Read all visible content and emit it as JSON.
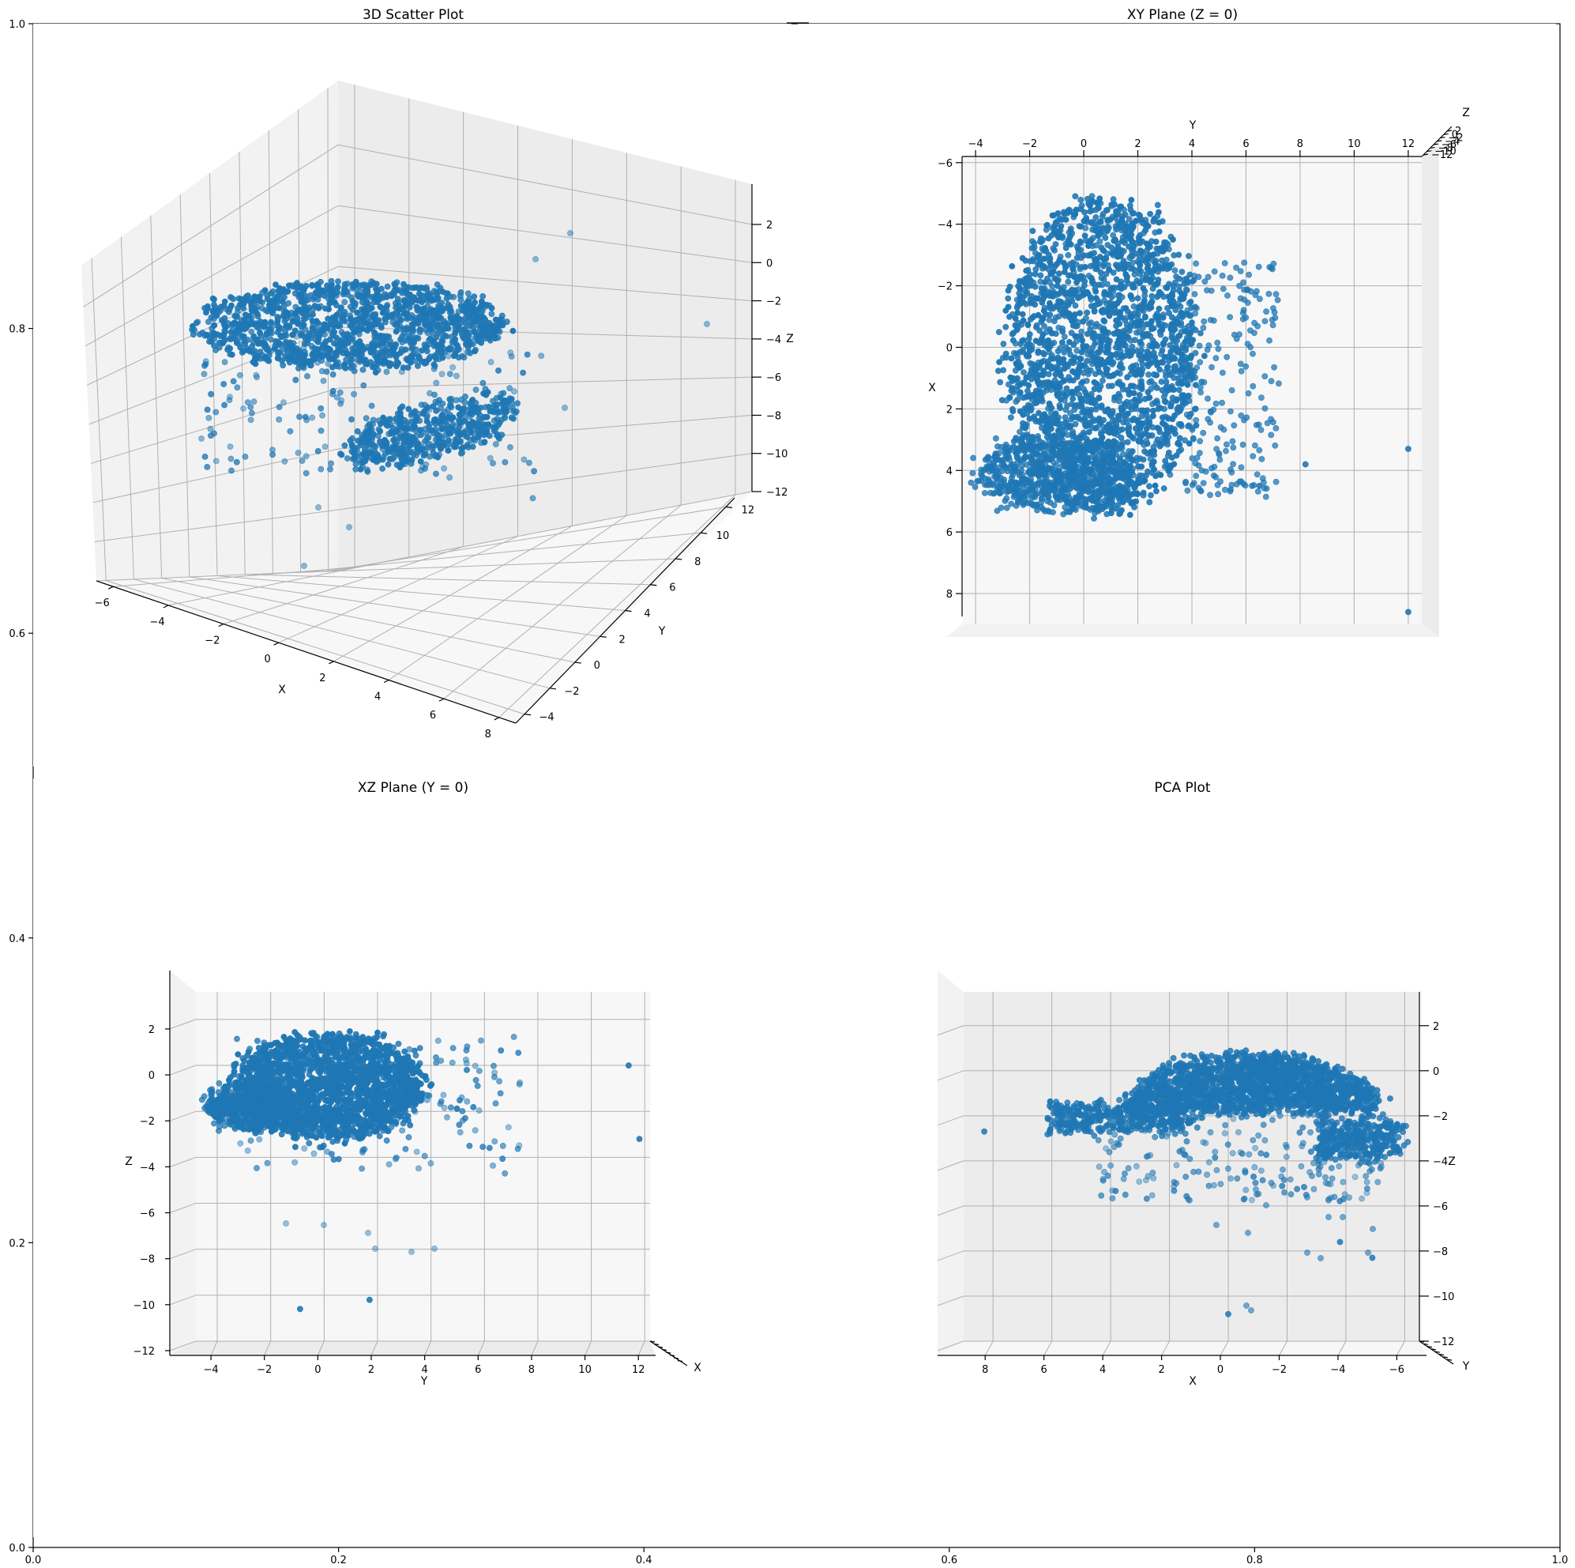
{
  "chart_data": [
    {
      "panel": "background_axes",
      "type": "scatter",
      "title": "",
      "xlabel": "",
      "ylabel": "",
      "xlim": [
        0.0,
        1.0
      ],
      "ylim": [
        0.0,
        1.0
      ],
      "xticks": [
        "0.0",
        "0.2",
        "0.4",
        "0.6",
        "0.8",
        "1.0"
      ],
      "yticks": [
        "0.0",
        "0.2",
        "0.4",
        "0.6",
        "0.8",
        "1.0"
      ],
      "series": []
    },
    {
      "panel": "3d_scatter",
      "type": "scatter",
      "title": "3D Scatter Plot",
      "xlabel": "X",
      "ylabel": "Y",
      "zlabel": "Z",
      "xlim": [
        -6,
        9
      ],
      "ylim": [
        -4,
        13
      ],
      "zlim": [
        -12,
        3
      ],
      "xticks": [
        "−6",
        "−4",
        "−2",
        "0",
        "2",
        "4",
        "6",
        "8"
      ],
      "yticks": [
        "−4",
        "−2",
        "0",
        "2",
        "4",
        "6",
        "8",
        "10",
        "12"
      ],
      "zticks": [
        "−12",
        "−10",
        "−8",
        "−6",
        "−4",
        "−2",
        "0",
        "2"
      ],
      "grid": true,
      "point_color": "#1f77b4",
      "clusters": [
        {
          "description": "upper sheet",
          "x": [
            -5,
            3
          ],
          "y": [
            -4,
            6
          ],
          "z": [
            -2,
            2.5
          ]
        },
        {
          "description": "lower sheet",
          "x": [
            -1,
            8
          ],
          "y": [
            -3,
            5
          ],
          "z": [
            -4,
            -2
          ]
        }
      ],
      "outliers": [
        {
          "x": 3.4,
          "y": 12.5,
          "z": -3.6
        },
        {
          "x": 7.9,
          "y": 12.5,
          "z": -3.2
        },
        {
          "x": 1.0,
          "y": 4.7,
          "z": -10.1
        },
        {
          "x": 0.3,
          "y": -2.0,
          "z": -11.5
        }
      ]
    },
    {
      "panel": "xy_plane",
      "type": "scatter",
      "title": "XY Plane (Z = 0)",
      "xlabel": "Y",
      "ylabel": "X",
      "zlabel": "Z",
      "xlim": [
        -4.5,
        12.5
      ],
      "ylim": [
        -6.2,
        9
      ],
      "xticks": [
        "−4",
        "−2",
        "0",
        "2",
        "4",
        "6",
        "8",
        "10",
        "12"
      ],
      "yticks": [
        "−6",
        "−4",
        "−2",
        "0",
        "2",
        "4",
        "6",
        "8"
      ],
      "zticks": [
        "−12",
        "−10",
        "−8",
        "−6",
        "−4",
        "−2",
        "0",
        "2"
      ],
      "grid": true,
      "point_color": "#1f77b4",
      "outliers": [
        {
          "x": 12.0,
          "y": 3.3
        },
        {
          "x": 12.0,
          "y": 8.6
        },
        {
          "x": 8.2,
          "y": 3.8
        },
        {
          "x": 6.5,
          "y": 4.5
        }
      ]
    },
    {
      "panel": "xz_plane",
      "type": "scatter",
      "title": "XZ Plane (Y = 0)",
      "xlabel": "Y",
      "ylabel": "Z",
      "xlim": [
        -4.8,
        12.2
      ],
      "ylim": [
        -12,
        3.2
      ],
      "xticks": [
        "−4",
        "−2",
        "0",
        "2",
        "4",
        "6",
        "8",
        "10",
        "12"
      ],
      "yticks": [
        "−12",
        "−10",
        "−8",
        "−6",
        "−4",
        "−2",
        "0",
        "2"
      ],
      "depth_axis_label": "X",
      "grid": true,
      "point_color": "#1f77b4",
      "outliers": [
        {
          "x": 11.4,
          "y": 0.0
        },
        {
          "x": 11.8,
          "y": -3.2
        },
        {
          "x": -0.9,
          "y": -10.6
        },
        {
          "x": 1.7,
          "y": -10.2
        }
      ]
    },
    {
      "panel": "pca",
      "type": "scatter",
      "title": "PCA Plot",
      "xlabel": "X",
      "ylabel": "Z",
      "xlim": [
        9.0,
        -6.5
      ],
      "ylim": [
        -12,
        3.5
      ],
      "xticks": [
        "8",
        "6",
        "4",
        "2",
        "0",
        "−2",
        "−4",
        "−6"
      ],
      "yticks": [
        "−12",
        "−10",
        "−8",
        "−6",
        "−4",
        "−2",
        "0",
        "2"
      ],
      "depth_axis_label": "Y",
      "grid": true,
      "point_color": "#1f77b4",
      "outliers": [
        {
          "x": 8.3,
          "y": -2.7
        },
        {
          "x": 0.0,
          "y": -10.8
        },
        {
          "x": -4.9,
          "y": -8.3
        },
        {
          "x": -3.8,
          "y": -7.6
        }
      ]
    }
  ]
}
